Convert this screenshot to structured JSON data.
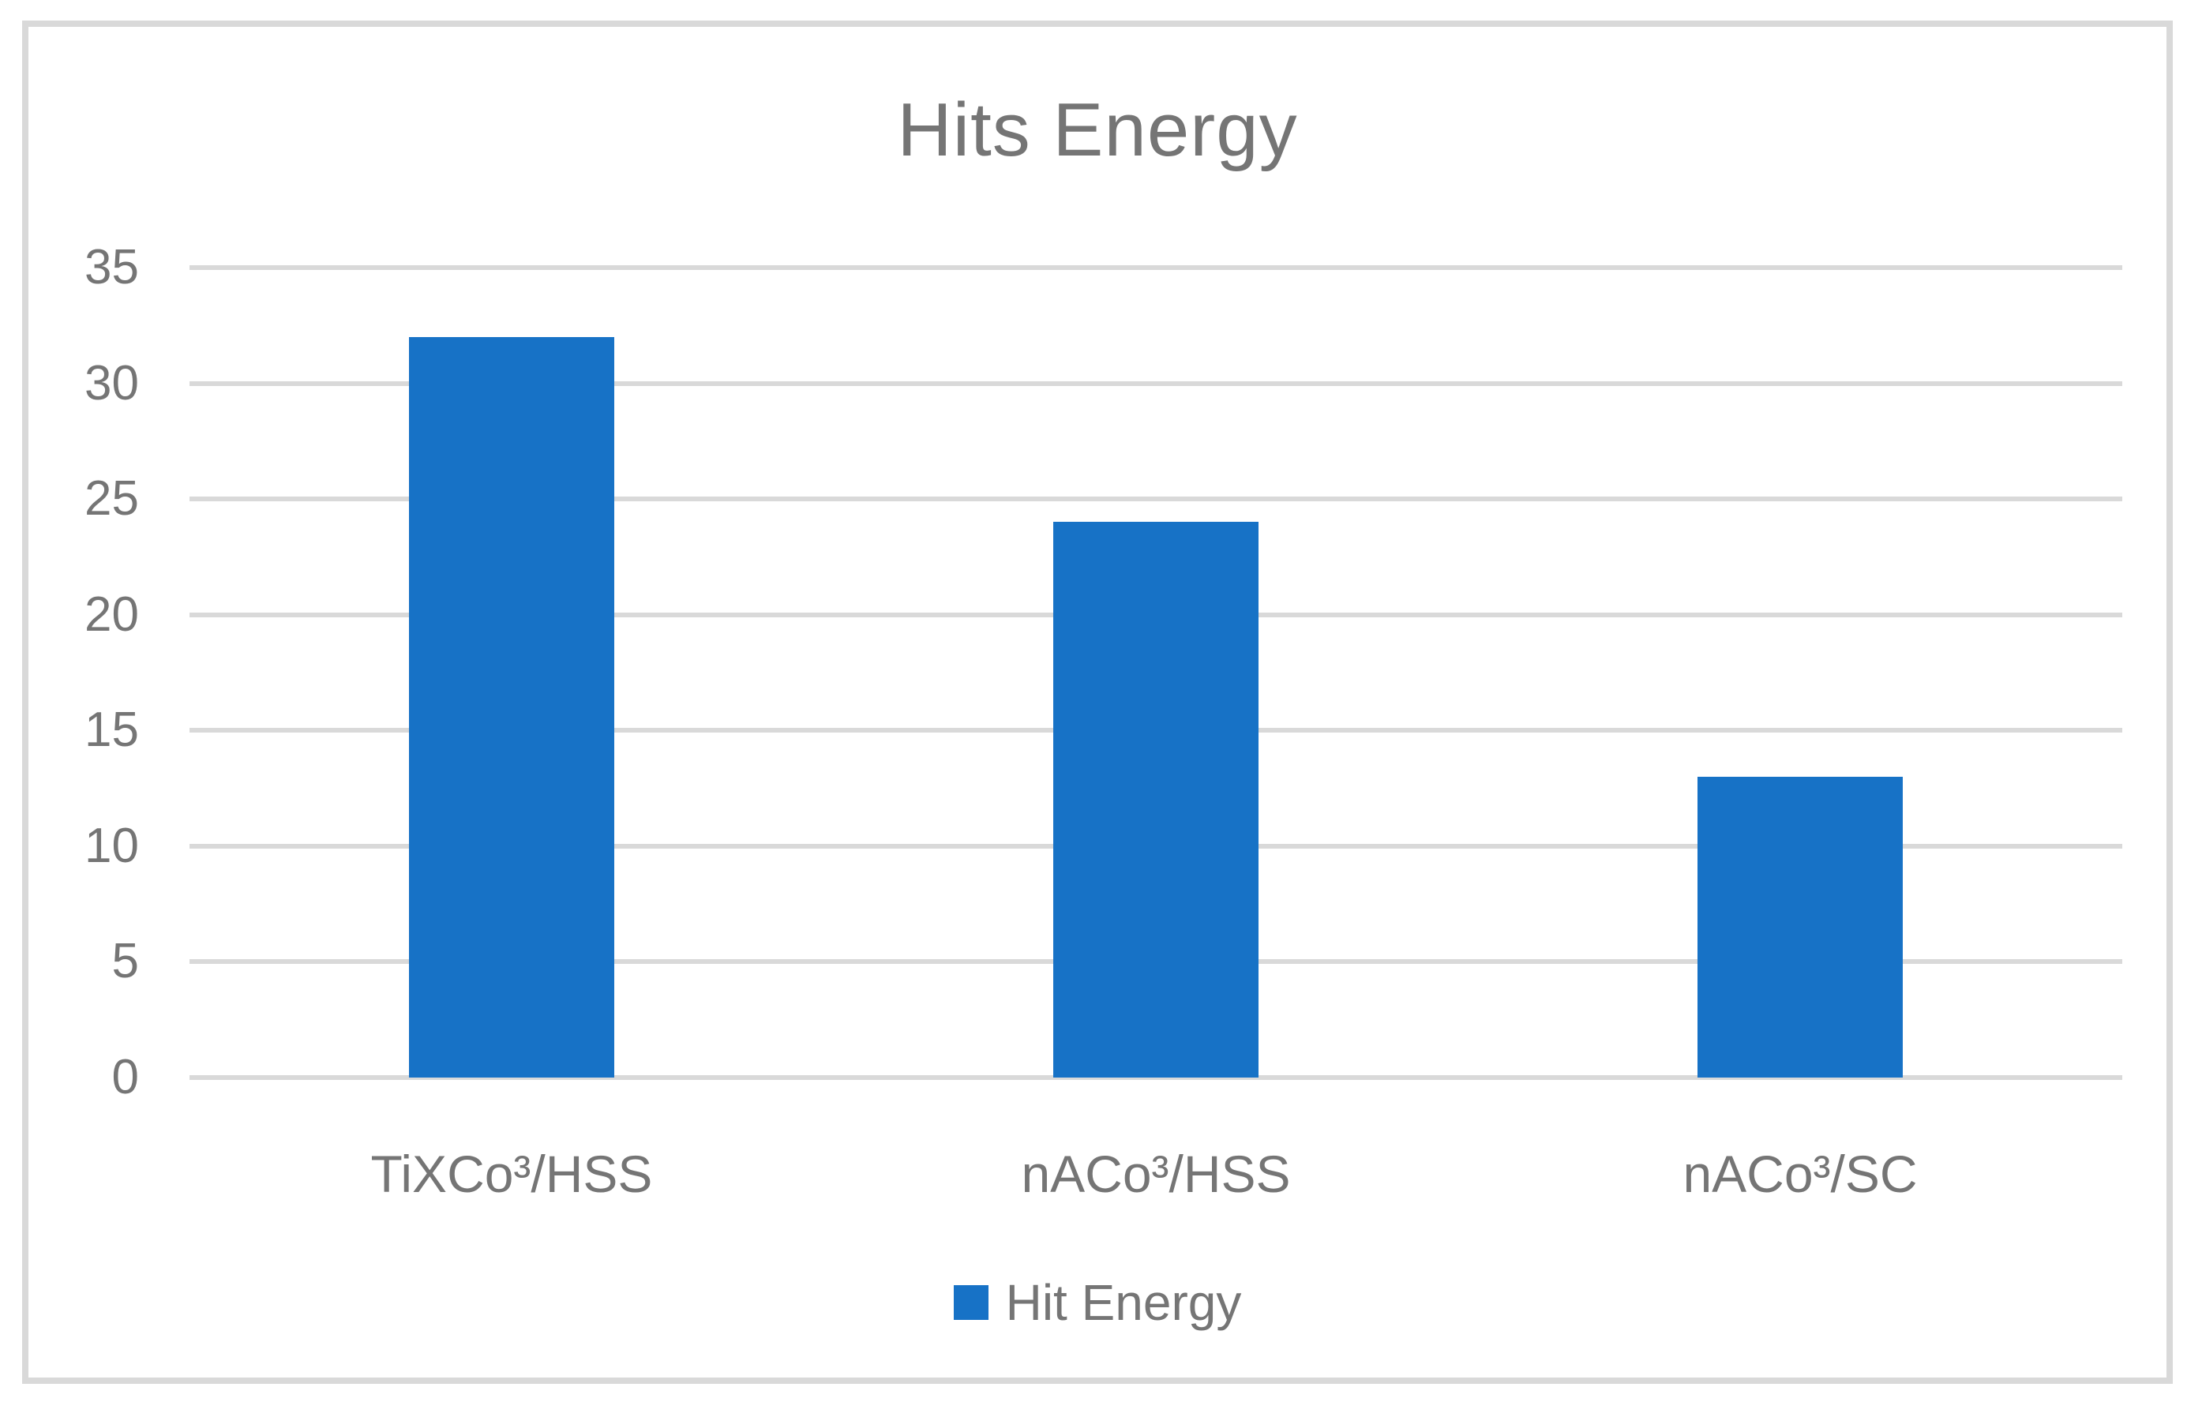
{
  "chart_data": {
    "type": "bar",
    "title": "Hits Energy",
    "categories": [
      "TiXCo³/HSS",
      "nACo³/HSS",
      "nACo³/SC"
    ],
    "series": [
      {
        "name": "Hit Energy",
        "values": [
          32,
          24,
          13
        ]
      }
    ],
    "xlabel": "",
    "ylabel": "",
    "ylim": [
      0,
      35
    ],
    "yticks": [
      0,
      5,
      10,
      15,
      20,
      25,
      30,
      35
    ],
    "grid": "horizontal",
    "legend_position": "bottom",
    "legend_entries": [
      "Hit Energy"
    ],
    "colors": {
      "bar": "#1772C6",
      "text": "#757575",
      "gridline": "#D9D9D9",
      "frame_border": "#D9D9D9",
      "background": "#FFFFFF"
    }
  }
}
